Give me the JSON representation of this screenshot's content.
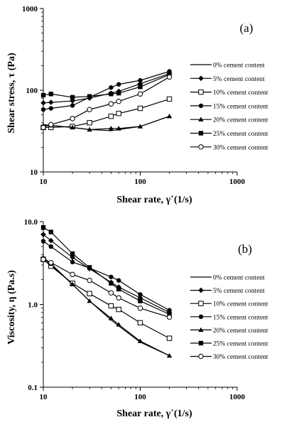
{
  "chart_data": [
    {
      "type": "line",
      "panel_label": "(a)",
      "xlabel": "Shear rate, γ˙(1/s)",
      "ylabel": "Shear stress, τ (Pa)",
      "xscale": "log",
      "yscale": "log",
      "xlim": [
        10,
        1000
      ],
      "ylim": [
        10,
        1000
      ],
      "xticks": [
        "10",
        "100",
        "1000"
      ],
      "yticks": [
        "10",
        "100",
        "1000"
      ],
      "legend_position": "right",
      "x": [
        10,
        12,
        20,
        30,
        50,
        60,
        100,
        200
      ],
      "series": [
        {
          "name": "0% cement content",
          "marker": "none",
          "values": [
            38,
            37,
            35,
            33,
            32,
            33,
            36,
            48
          ]
        },
        {
          "name": "5% cement content",
          "marker": "diamond",
          "values": [
            70,
            71,
            74,
            80,
            92,
            97,
            120,
            160
          ]
        },
        {
          "name": "10% cement content",
          "marker": "square-open",
          "values": [
            35,
            35,
            36,
            40,
            48,
            52,
            60,
            78
          ]
        },
        {
          "name": "15% cement content",
          "marker": "circle",
          "values": [
            58,
            60,
            65,
            82,
            108,
            118,
            132,
            170
          ]
        },
        {
          "name": "20% cement content",
          "marker": "triangle",
          "values": [
            37,
            37,
            35,
            33,
            34,
            34,
            36,
            48
          ]
        },
        {
          "name": "25% cement content",
          "marker": "square",
          "values": [
            87,
            90,
            82,
            84,
            90,
            92,
            110,
            155
          ]
        },
        {
          "name": "30% cement content",
          "marker": "circle-open",
          "values": [
            35,
            38,
            45,
            58,
            68,
            73,
            90,
            145
          ]
        }
      ]
    },
    {
      "type": "line",
      "panel_label": "(b)",
      "xlabel": "Shear rate, γ˙(1/s)",
      "ylabel": "Viscosity, η (Pa.s)",
      "xscale": "log",
      "yscale": "log",
      "xlim": [
        10,
        1000
      ],
      "ylim": [
        0.1,
        10
      ],
      "xticks": [
        "10",
        "100",
        "1000"
      ],
      "yticks": [
        "0.1",
        "1.0",
        "10.0"
      ],
      "legend_position": "right",
      "x": [
        10,
        12,
        20,
        30,
        50,
        60,
        100,
        200
      ],
      "series": [
        {
          "name": "0% cement content",
          "marker": "none",
          "values": [
            3.7,
            3.0,
            1.75,
            1.1,
            0.65,
            0.55,
            0.35,
            0.24
          ]
        },
        {
          "name": "5% cement content",
          "marker": "diamond",
          "values": [
            7.0,
            5.9,
            3.7,
            2.7,
            1.85,
            1.62,
            1.2,
            0.8
          ]
        },
        {
          "name": "10% cement content",
          "marker": "square-open",
          "values": [
            3.5,
            2.9,
            1.8,
            1.35,
            0.96,
            0.87,
            0.6,
            0.39
          ]
        },
        {
          "name": "15% cement content",
          "marker": "circle",
          "values": [
            5.8,
            5.0,
            3.25,
            2.75,
            2.15,
            1.95,
            1.32,
            0.85
          ]
        },
        {
          "name": "20% cement content",
          "marker": "triangle",
          "values": [
            3.7,
            3.1,
            1.75,
            1.1,
            0.68,
            0.57,
            0.36,
            0.24
          ]
        },
        {
          "name": "25% cement content",
          "marker": "square",
          "values": [
            8.5,
            7.5,
            4.1,
            2.8,
            1.8,
            1.53,
            1.1,
            0.76
          ]
        },
        {
          "name": "30% cement content",
          "marker": "circle-open",
          "values": [
            3.5,
            3.2,
            2.3,
            1.95,
            1.38,
            1.2,
            0.9,
            0.7
          ]
        }
      ]
    }
  ]
}
